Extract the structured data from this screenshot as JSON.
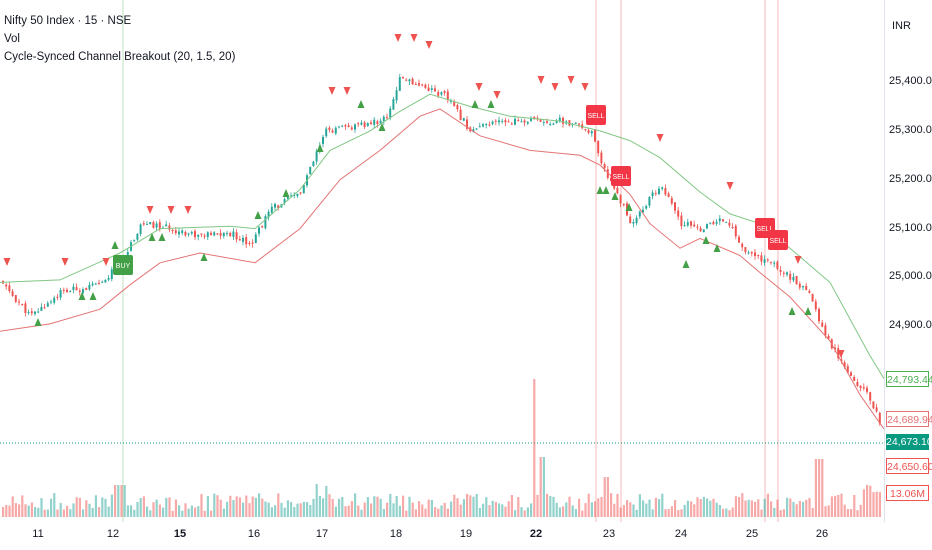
{
  "legend": {
    "symbol_line": "Nifty 50 Index · 15 · NSE",
    "vol_line": "Vol",
    "indicator_line": "Cycle-Synced Channel Breakout (20, 1.5, 20)"
  },
  "axis": {
    "currency": "INR",
    "y_ticks": [
      "25,400.00",
      "25,300.00",
      "25,200.00",
      "25,100.00",
      "25,000.00",
      "24,900.00"
    ],
    "x_ticks": [
      {
        "label": "11",
        "bold": false
      },
      {
        "label": "12",
        "bold": false
      },
      {
        "label": "15",
        "bold": true
      },
      {
        "label": "16",
        "bold": false
      },
      {
        "label": "17",
        "bold": false
      },
      {
        "label": "18",
        "bold": false
      },
      {
        "label": "19",
        "bold": false
      },
      {
        "label": "22",
        "bold": true
      },
      {
        "label": "23",
        "bold": false
      },
      {
        "label": "24",
        "bold": false
      },
      {
        "label": "25",
        "bold": false
      },
      {
        "label": "26",
        "bold": false
      }
    ]
  },
  "price_tags": {
    "upper_band": "24,793.44",
    "lower_band": "24,689.94",
    "last_price": "24,673.10",
    "low_price": "24,650.60",
    "volume": "13.06M"
  },
  "colors": {
    "up": "#26a69a",
    "down": "#ef5350",
    "upper_line": "#81c784",
    "lower_line": "#e57373",
    "buy_label": "#43a047",
    "sell_label": "#f23645",
    "tag_green": "#4caf50",
    "tag_teal": "#089981"
  },
  "signals": {
    "buy_text": "BUY",
    "sell_text": "SELL"
  },
  "chart_data": {
    "type": "line",
    "series": [],
    "upper_band": [
      [
        0,
        24990
      ],
      [
        60,
        24995
      ],
      [
        120,
        25050
      ],
      [
        160,
        25100
      ],
      [
        230,
        25105
      ],
      [
        255,
        25100
      ],
      [
        300,
        25180
      ],
      [
        330,
        25260
      ],
      [
        370,
        25300
      ],
      [
        400,
        25340
      ],
      [
        430,
        25375
      ],
      [
        470,
        25350
      ],
      [
        510,
        25330
      ],
      [
        560,
        25320
      ],
      [
        600,
        25300
      ],
      [
        630,
        25280
      ],
      [
        660,
        25245
      ],
      [
        700,
        25175
      ],
      [
        730,
        25130
      ],
      [
        760,
        25110
      ],
      [
        790,
        25060
      ],
      [
        830,
        24990
      ],
      [
        870,
        24840
      ],
      [
        884,
        24793
      ]
    ],
    "lower_band": [
      [
        0,
        24890
      ],
      [
        50,
        24905
      ],
      [
        100,
        24935
      ],
      [
        130,
        24985
      ],
      [
        160,
        25030
      ],
      [
        200,
        25050
      ],
      [
        255,
        25030
      ],
      [
        300,
        25100
      ],
      [
        340,
        25200
      ],
      [
        380,
        25260
      ],
      [
        420,
        25330
      ],
      [
        440,
        25345
      ],
      [
        480,
        25290
      ],
      [
        530,
        25260
      ],
      [
        580,
        25250
      ],
      [
        600,
        25230
      ],
      [
        630,
        25170
      ],
      [
        650,
        25110
      ],
      [
        680,
        25060
      ],
      [
        700,
        25080
      ],
      [
        740,
        25045
      ],
      [
        760,
        25010
      ],
      [
        790,
        24960
      ],
      [
        830,
        24870
      ],
      [
        860,
        24760
      ],
      [
        884,
        24690
      ]
    ]
  }
}
